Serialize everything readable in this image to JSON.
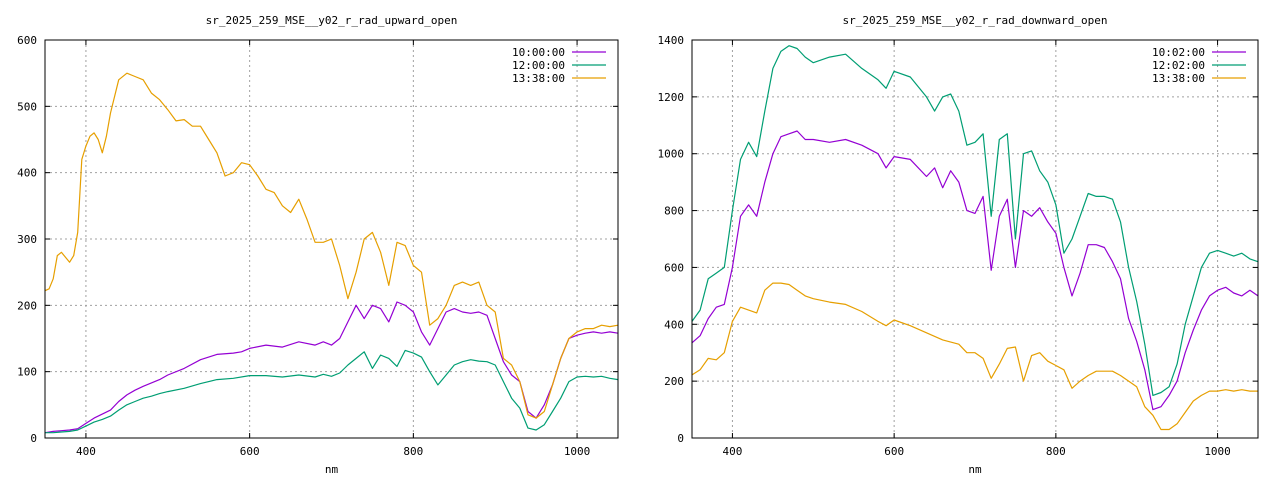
{
  "chart_data": [
    {
      "type": "line",
      "title": "sr_2025_259_MSE__y02_r_rad_upward_open",
      "xlabel": "nm",
      "ylabel": "",
      "xlim": [
        350,
        1050
      ],
      "ylim": [
        0,
        600
      ],
      "xticks": [
        400,
        600,
        800,
        1000
      ],
      "yticks": [
        0,
        100,
        200,
        300,
        400,
        500,
        600
      ],
      "grid": true,
      "legend_position": "top-right",
      "series": [
        {
          "name": "10:00:00",
          "color": "#9400d3",
          "x": [
            350,
            360,
            370,
            380,
            390,
            400,
            410,
            420,
            430,
            440,
            450,
            460,
            470,
            480,
            490,
            500,
            520,
            540,
            560,
            580,
            590,
            600,
            620,
            640,
            660,
            680,
            690,
            700,
            710,
            720,
            730,
            740,
            750,
            760,
            770,
            780,
            790,
            800,
            810,
            820,
            830,
            840,
            850,
            860,
            870,
            880,
            890,
            900,
            910,
            920,
            930,
            940,
            950,
            960,
            970,
            980,
            990,
            1000,
            1010,
            1020,
            1030,
            1040,
            1050
          ],
          "y": [
            8,
            10,
            11,
            12,
            14,
            22,
            30,
            36,
            42,
            55,
            65,
            72,
            78,
            83,
            88,
            95,
            105,
            118,
            126,
            128,
            130,
            135,
            140,
            137,
            145,
            140,
            145,
            140,
            150,
            175,
            200,
            180,
            200,
            195,
            175,
            205,
            200,
            190,
            160,
            140,
            165,
            190,
            195,
            190,
            188,
            190,
            185,
            150,
            115,
            95,
            85,
            40,
            30,
            50,
            80,
            120,
            150,
            155,
            158,
            160,
            158,
            160,
            158
          ]
        },
        {
          "name": "12:00:00",
          "color": "#009e73",
          "x": [
            350,
            360,
            370,
            380,
            390,
            400,
            410,
            420,
            430,
            440,
            450,
            460,
            470,
            480,
            490,
            500,
            520,
            540,
            560,
            580,
            600,
            620,
            640,
            660,
            680,
            690,
            700,
            710,
            720,
            730,
            740,
            750,
            760,
            770,
            780,
            790,
            800,
            810,
            820,
            830,
            840,
            850,
            860,
            870,
            880,
            890,
            900,
            910,
            920,
            930,
            940,
            950,
            960,
            970,
            980,
            990,
            1000,
            1010,
            1020,
            1030,
            1040,
            1050
          ],
          "y": [
            8,
            8,
            9,
            10,
            12,
            18,
            24,
            28,
            33,
            42,
            50,
            55,
            60,
            63,
            67,
            70,
            75,
            82,
            88,
            90,
            94,
            94,
            92,
            95,
            92,
            96,
            93,
            98,
            110,
            120,
            130,
            105,
            125,
            120,
            108,
            132,
            128,
            122,
            100,
            80,
            95,
            110,
            115,
            118,
            116,
            115,
            110,
            85,
            60,
            45,
            15,
            12,
            20,
            40,
            60,
            85,
            92,
            93,
            92,
            93,
            90,
            88
          ]
        },
        {
          "name": "13:38:00",
          "color": "#e69f00",
          "x": [
            350,
            355,
            360,
            365,
            370,
            380,
            385,
            390,
            395,
            400,
            405,
            410,
            415,
            420,
            425,
            430,
            440,
            450,
            460,
            470,
            480,
            490,
            500,
            510,
            520,
            530,
            540,
            550,
            560,
            570,
            580,
            590,
            600,
            610,
            620,
            630,
            640,
            650,
            660,
            670,
            680,
            690,
            700,
            710,
            720,
            730,
            740,
            750,
            760,
            770,
            780,
            790,
            800,
            810,
            820,
            830,
            840,
            850,
            860,
            870,
            880,
            890,
            900,
            910,
            920,
            930,
            940,
            950,
            960,
            970,
            980,
            990,
            1000,
            1010,
            1020,
            1030,
            1040,
            1050
          ],
          "y": [
            222,
            225,
            240,
            275,
            280,
            265,
            275,
            310,
            420,
            440,
            455,
            460,
            450,
            430,
            455,
            490,
            540,
            550,
            545,
            540,
            520,
            510,
            495,
            478,
            480,
            470,
            470,
            450,
            430,
            395,
            400,
            415,
            412,
            395,
            375,
            370,
            350,
            340,
            360,
            330,
            295,
            295,
            300,
            260,
            210,
            250,
            300,
            310,
            280,
            230,
            295,
            290,
            260,
            250,
            170,
            180,
            200,
            230,
            235,
            230,
            235,
            200,
            190,
            120,
            110,
            85,
            35,
            30,
            40,
            80,
            120,
            150,
            160,
            165,
            165,
            170,
            168,
            170
          ]
        }
      ]
    },
    {
      "type": "line",
      "title": "sr_2025_259_MSE__y02_r_rad_downward_open",
      "xlabel": "nm",
      "ylabel": "",
      "xlim": [
        350,
        1050
      ],
      "ylim": [
        0,
        1400
      ],
      "xticks": [
        400,
        600,
        800,
        1000
      ],
      "yticks": [
        0,
        200,
        400,
        600,
        800,
        1000,
        1200,
        1400
      ],
      "grid": true,
      "legend_position": "top-right",
      "series": [
        {
          "name": "10:02:00",
          "color": "#9400d3",
          "x": [
            350,
            360,
            370,
            380,
            390,
            400,
            410,
            420,
            430,
            440,
            450,
            460,
            470,
            480,
            490,
            500,
            520,
            540,
            560,
            580,
            590,
            600,
            620,
            640,
            650,
            660,
            670,
            680,
            690,
            700,
            710,
            720,
            730,
            740,
            750,
            760,
            770,
            780,
            790,
            800,
            810,
            820,
            830,
            840,
            850,
            860,
            870,
            880,
            890,
            900,
            910,
            920,
            930,
            940,
            950,
            960,
            970,
            980,
            990,
            1000,
            1010,
            1020,
            1030,
            1040,
            1050
          ],
          "y": [
            335,
            360,
            420,
            460,
            470,
            600,
            780,
            820,
            780,
            900,
            1000,
            1060,
            1070,
            1080,
            1050,
            1050,
            1040,
            1050,
            1030,
            1000,
            950,
            990,
            980,
            920,
            950,
            880,
            940,
            900,
            800,
            790,
            850,
            590,
            780,
            840,
            600,
            800,
            780,
            810,
            760,
            720,
            600,
            500,
            580,
            680,
            680,
            670,
            620,
            560,
            420,
            340,
            240,
            100,
            110,
            150,
            200,
            300,
            380,
            450,
            500,
            520,
            530,
            510,
            500,
            520,
            500
          ]
        },
        {
          "name": "12:02:00",
          "color": "#009e73",
          "x": [
            350,
            360,
            370,
            380,
            390,
            400,
            410,
            420,
            430,
            440,
            450,
            460,
            470,
            480,
            490,
            500,
            520,
            540,
            560,
            580,
            590,
            600,
            620,
            640,
            650,
            660,
            670,
            680,
            690,
            700,
            710,
            720,
            730,
            740,
            750,
            760,
            770,
            780,
            790,
            800,
            810,
            820,
            830,
            840,
            850,
            860,
            870,
            880,
            890,
            900,
            910,
            920,
            930,
            940,
            950,
            960,
            970,
            980,
            990,
            1000,
            1010,
            1020,
            1030,
            1040,
            1050
          ],
          "y": [
            410,
            450,
            560,
            580,
            600,
            800,
            980,
            1040,
            990,
            1150,
            1300,
            1360,
            1380,
            1370,
            1340,
            1320,
            1340,
            1350,
            1300,
            1260,
            1230,
            1290,
            1270,
            1200,
            1150,
            1200,
            1210,
            1150,
            1030,
            1040,
            1070,
            780,
            1050,
            1070,
            700,
            1000,
            1010,
            940,
            900,
            820,
            650,
            700,
            780,
            860,
            850,
            850,
            840,
            760,
            600,
            480,
            330,
            150,
            160,
            180,
            260,
            400,
            500,
            600,
            650,
            660,
            650,
            640,
            650,
            630,
            620
          ]
        },
        {
          "name": "13:38:00",
          "color": "#e69f00",
          "x": [
            350,
            360,
            370,
            380,
            390,
            400,
            410,
            420,
            430,
            440,
            450,
            460,
            470,
            480,
            490,
            500,
            520,
            540,
            560,
            580,
            590,
            600,
            620,
            640,
            660,
            680,
            690,
            700,
            710,
            720,
            730,
            740,
            750,
            760,
            770,
            780,
            790,
            800,
            810,
            820,
            830,
            840,
            850,
            860,
            870,
            880,
            890,
            900,
            910,
            920,
            930,
            940,
            950,
            960,
            970,
            980,
            990,
            1000,
            1010,
            1020,
            1030,
            1040,
            1050
          ],
          "y": [
            222,
            240,
            280,
            275,
            300,
            410,
            460,
            450,
            440,
            520,
            545,
            545,
            540,
            520,
            500,
            490,
            478,
            470,
            445,
            410,
            395,
            415,
            395,
            370,
            345,
            330,
            300,
            300,
            280,
            210,
            260,
            315,
            320,
            200,
            290,
            300,
            270,
            255,
            240,
            175,
            200,
            220,
            235,
            235,
            235,
            220,
            200,
            180,
            110,
            80,
            30,
            30,
            50,
            90,
            130,
            150,
            165,
            165,
            170,
            165,
            170,
            165,
            165
          ]
        }
      ]
    }
  ]
}
